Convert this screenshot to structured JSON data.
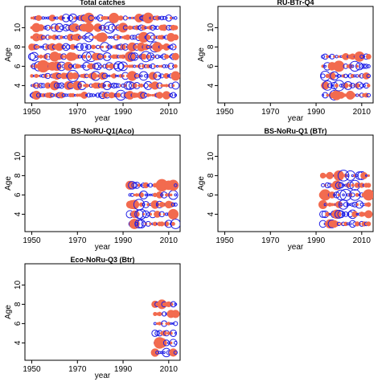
{
  "chart_data": [
    {
      "type": "scatter",
      "title": "Total catches",
      "xlabel": "year",
      "ylabel": "Age",
      "xlim": [
        1947,
        2015
      ],
      "ylim": [
        2.2,
        12.2
      ],
      "xticks": [
        1950,
        1970,
        1990,
        2010
      ],
      "yticks": [
        4,
        6,
        8,
        10
      ],
      "ages": [
        3,
        4,
        5,
        6,
        7,
        8,
        9,
        10,
        11
      ],
      "years": [
        1950,
        2013
      ],
      "encoding": "bubble residuals (positive=filled, negative=open)",
      "colors": {
        "positive": "#f26b4f",
        "negative": "#1f1fe6"
      }
    },
    {
      "type": "scatter",
      "title": "RU-BTr-Q4",
      "xlabel": "year",
      "ylabel": "Age",
      "xlim": [
        1947,
        2015
      ],
      "ylim": [
        2.2,
        12.2
      ],
      "xticks": [
        1950,
        1970,
        1990,
        2010
      ],
      "yticks": [
        4,
        6,
        8,
        10
      ],
      "ages": [
        3,
        4,
        5,
        6,
        7
      ],
      "years": [
        1993,
        2013
      ],
      "encoding": "bubble residuals (positive=filled, negative=open)",
      "colors": {
        "positive": "#f26b4f",
        "negative": "#1f1fe6"
      }
    },
    {
      "type": "scatter",
      "title": "BS-NoRU-Q1(Aco)",
      "xlabel": "year",
      "ylabel": "Age",
      "xlim": [
        1947,
        2015
      ],
      "ylim": [
        2.2,
        12.2
      ],
      "xticks": [
        1950,
        1970,
        1990,
        2010
      ],
      "yticks": [
        4,
        6,
        8,
        10
      ],
      "ages": [
        3,
        4,
        5,
        6,
        7
      ],
      "years": [
        1993,
        2013
      ],
      "encoding": "bubble residuals (positive=filled, negative=open)",
      "colors": {
        "positive": "#f26b4f",
        "negative": "#1f1fe6"
      }
    },
    {
      "type": "scatter",
      "title": "BS-NoRu-Q1 (BTr)",
      "xlabel": "year",
      "ylabel": "Age",
      "xlim": [
        1947,
        2015
      ],
      "ylim": [
        2.2,
        12.2
      ],
      "xticks": [
        1950,
        1970,
        1990,
        2010
      ],
      "yticks": [
        4,
        6,
        8,
        10
      ],
      "ages": [
        3,
        4,
        5,
        6,
        7,
        8
      ],
      "years": [
        1993,
        2013
      ],
      "encoding": "bubble residuals (positive=filled, negative=open)",
      "colors": {
        "positive": "#f26b4f",
        "negative": "#1f1fe6"
      }
    },
    {
      "type": "scatter",
      "title": "Eco-NoRu-Q3 (Btr)",
      "xlabel": "year",
      "ylabel": "Age",
      "xlim": [
        1947,
        2015
      ],
      "ylim": [
        2.2,
        12.2
      ],
      "xticks": [
        1950,
        1970,
        1990,
        2010
      ],
      "yticks": [
        4,
        6,
        8,
        10
      ],
      "ages": [
        3,
        4,
        5,
        6,
        7,
        8
      ],
      "years": [
        2004,
        2013
      ],
      "encoding": "bubble residuals (positive=filled, negative=open)",
      "colors": {
        "positive": "#f26b4f",
        "negative": "#1f1fe6"
      }
    }
  ]
}
